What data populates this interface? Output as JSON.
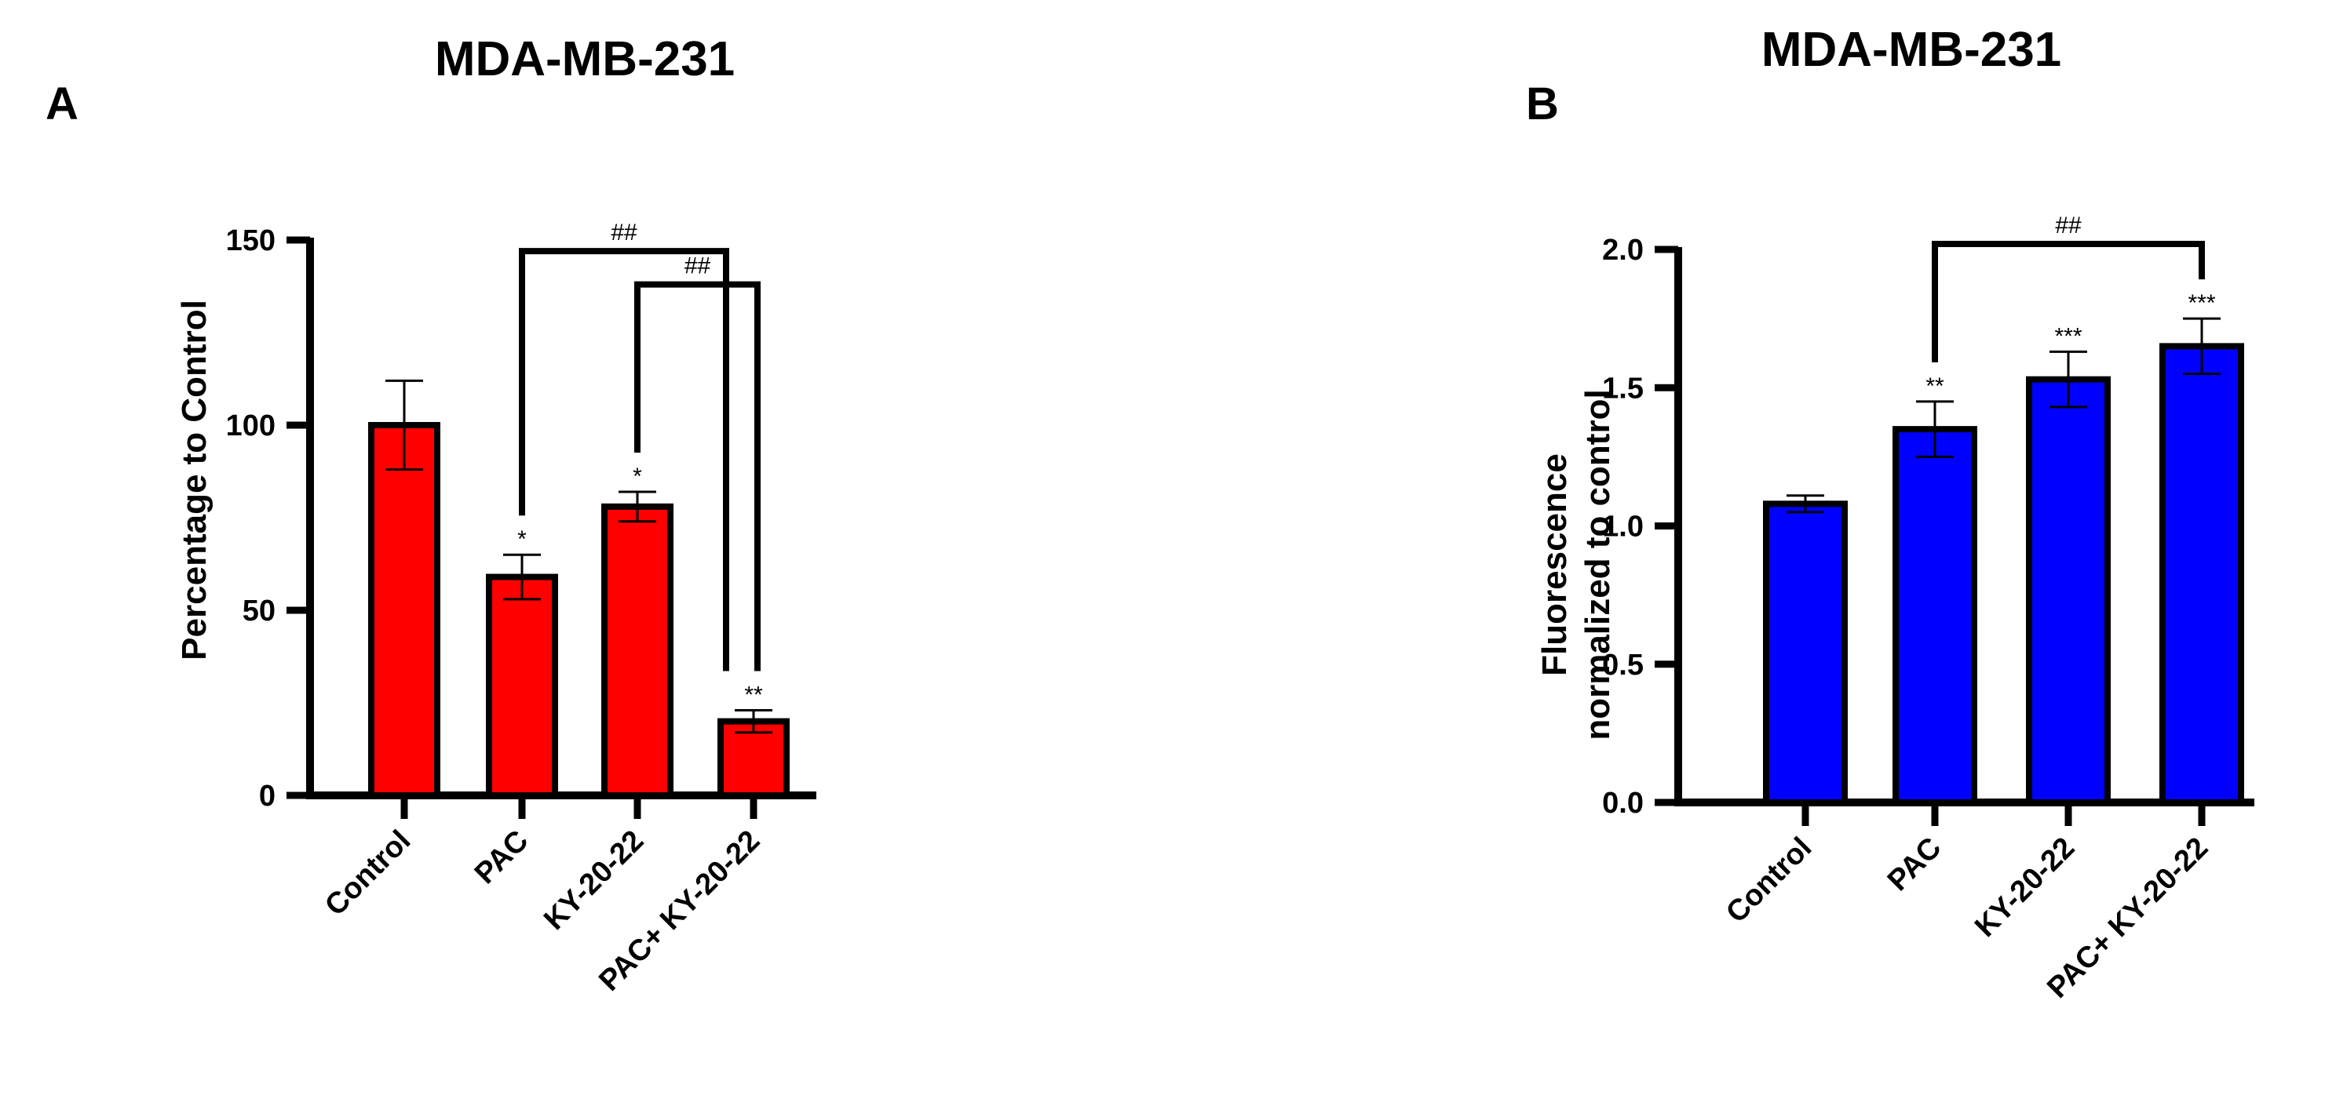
{
  "chart_data": [
    {
      "panel": "A",
      "type": "bar",
      "title": "MDA-MB-231",
      "ylabel": "Percentage to Control",
      "xlabel": "",
      "categories": [
        "Control",
        "PAC",
        "KY-20-22",
        "PAC+ KY-20-22"
      ],
      "values": [
        100,
        59,
        78,
        20
      ],
      "errors": [
        12,
        6,
        4,
        3
      ],
      "significance": [
        "",
        "*",
        "*",
        "**"
      ],
      "ylim": [
        0,
        150
      ],
      "yticks": [
        0,
        50,
        100,
        150
      ],
      "bar_color": "#ff0000",
      "brackets": [
        {
          "from": 1,
          "to": 3,
          "label": "##",
          "top": 147
        },
        {
          "from": 2,
          "to": 3,
          "label": "##",
          "top": 138
        }
      ]
    },
    {
      "panel": "B",
      "type": "bar",
      "title": "MDA-MB-231",
      "ylabel": [
        "Fluorescence",
        "normalized to control"
      ],
      "xlabel": "",
      "categories": [
        "Control",
        "PAC",
        "KY-20-22",
        "PAC+ KY-20-22"
      ],
      "values": [
        1.08,
        1.35,
        1.53,
        1.65
      ],
      "errors": [
        0.03,
        0.1,
        0.1,
        0.1
      ],
      "significance": [
        "",
        "**",
        "***",
        "***"
      ],
      "ylim": [
        0,
        2.0
      ],
      "yticks": [
        "0.0",
        "0.5",
        "1.0",
        "1.5",
        "2.0"
      ],
      "bar_color": "#0000ff",
      "brackets": [
        {
          "from": 1,
          "to": 3,
          "label": "##",
          "top": 2.02
        }
      ]
    }
  ]
}
